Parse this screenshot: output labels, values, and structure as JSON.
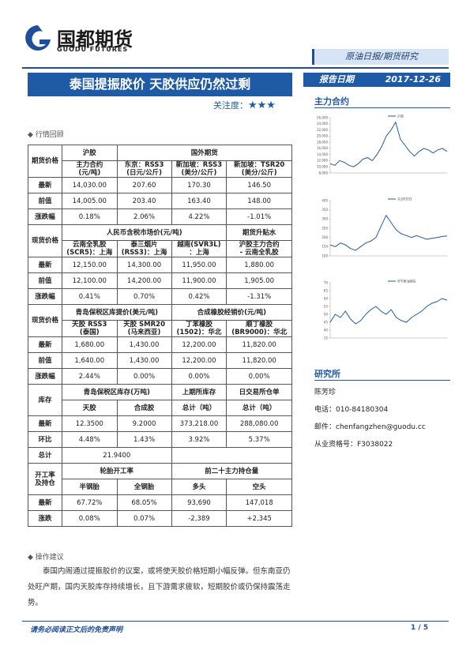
{
  "header": {
    "logo": "国都期货",
    "logo_en": "GUODU FUTURES",
    "tab": "原油日报/期货研究",
    "title": "泰国提振胶价 天胶供应仍然过剩",
    "attention_label": "关注度：",
    "attention_stars": "★★★",
    "date_label": "报告日期",
    "date": "2017-12-26"
  },
  "sections": {
    "main_contract": "主力合约",
    "review": "行情回顾",
    "advice": "操作建议",
    "advice_text": "泰国内阁通过提振胶价的议案，或将使天胶价格短期小幅反弹。但东南亚仍处旺产期，国内天胶库存持续增长，且下游需求疲软，短期胶价或仍保持震荡走势。"
  },
  "table": {
    "rows": [
      [
        "期货价格",
        "沪胶",
        "国外期货"
      ],
      [
        "主力合约\n(元/吨)",
        "东京：RSS3\n(日元/公斤)",
        "新加坡：RSS3\n(美分/公斤)",
        "新加坡：TSR20\n(美分/公斤)"
      ],
      [
        "最新",
        "14,030.00",
        "207.60",
        "170.30",
        "146.50"
      ],
      [
        "前值",
        "14,005.00",
        "203.40",
        "163.40",
        "148.00"
      ],
      [
        "涨跌幅",
        "0.18%",
        "2.06%",
        "4.22%",
        "-1.01%"
      ],
      [
        "现货价格",
        "人民币含税市场价(元/吨)",
        "期货升贴水"
      ],
      [
        "云南全乳胶\n(SCR5)：上海",
        "泰三烟片\n(RSS3)：上海",
        "越南(SVR3L)\n：上海",
        "沪胶主力合约\n- 云南全乳胶"
      ],
      [
        "最新",
        "12,150.00",
        "14,300.00",
        "11,950.00",
        "1,880.00"
      ],
      [
        "前值",
        "12,100.00",
        "14,200.00",
        "11,900.00",
        "1,905.00"
      ],
      [
        "涨跌幅",
        "0.41%",
        "0.70%",
        "0.42%",
        "-1.31%"
      ],
      [
        "现货价格",
        "青岛保税区库提价(美元/吨)",
        "合成橡胶经销价(元/吨)"
      ],
      [
        "天胶 RSS3\n(泰国)",
        "天胶 SMR20\n(马来西亚)",
        "丁苯橡胶\n(1502)：华北",
        "顺丁橡胶\n(BR9000)：华北"
      ],
      [
        "最新",
        "1,680.00",
        "1,430.00",
        "12,200.00",
        "11,820.00"
      ],
      [
        "前值",
        "1,640.00",
        "1,430.00",
        "12,200.00",
        "11,820.00"
      ],
      [
        "涨跌幅",
        "2.44%",
        "0.00%",
        "0.00%",
        "0.00%"
      ],
      [
        "库存",
        "青岛保税区库存(万吨)",
        "上期所库存",
        "日交易所仓单"
      ],
      [
        "天胶",
        "合成胶",
        "总计（吨）",
        "总计（吨）"
      ],
      [
        "最新",
        "12.3500",
        "9.2000",
        "373,218.00",
        "288,080.00"
      ],
      [
        "环比",
        "4.48%",
        "1.43%",
        "3.92%",
        "5.37%"
      ],
      [
        "总计",
        "21.9400"
      ],
      [
        "开工率\n及持仓",
        "轮胎开工率",
        "前二十主力持仓量"
      ],
      [
        "半钢胎",
        "全钢胎",
        "多头",
        "空头"
      ],
      [
        "最新",
        "67.72%",
        "68.05%",
        "93,690",
        "147,018"
      ],
      [
        "涨跌",
        "0.08%",
        "0.07%",
        "-2,389",
        "+2,345"
      ]
    ]
  },
  "charts": [
    {
      "legend": "沪胶",
      "yticks": [
        {
          "value": 8000,
          "label": "8,000"
        },
        {
          "value": 10000,
          "label": "10,000"
        },
        {
          "value": 12000,
          "label": "12,000"
        },
        {
          "value": 14000,
          "label": "14,000"
        },
        {
          "value": 16000,
          "label": "16,000"
        },
        {
          "value": 18000,
          "label": "18,000"
        },
        {
          "value": 20000,
          "label": "20,000"
        },
        {
          "value": 22000,
          "label": "22,000"
        },
        {
          "value": 24000,
          "label": "24,000"
        },
        {
          "value": 26000,
          "label": "26,000"
        }
      ],
      "values": [
        11000,
        10500,
        12000,
        11500,
        10500,
        10000,
        11000,
        12500,
        13000,
        12000,
        14000,
        16500,
        20000,
        22000,
        24500,
        19000,
        17000,
        15000,
        13500,
        15000,
        16000,
        15500,
        14500,
        15500,
        16000,
        15000
      ]
    },
    {
      "legend": "东京RSS3",
      "yticks": [
        100,
        150,
        200,
        250,
        300,
        350,
        400
      ],
      "values": [
        160,
        150,
        170,
        160,
        140,
        130,
        150,
        170,
        180,
        200,
        260,
        320,
        280,
        240,
        220,
        210,
        200,
        210,
        200,
        190,
        195,
        200,
        205,
        208
      ]
    },
    {
      "legend": "WTI原油期货",
      "yticks": [
        35,
        40,
        45,
        50,
        55,
        60,
        65,
        70
      ],
      "values": [
        45,
        50,
        48,
        52,
        47,
        44,
        46,
        50,
        53,
        55,
        52,
        50,
        53,
        48,
        46,
        45,
        48,
        50,
        52,
        55,
        57,
        58,
        60,
        59
      ]
    }
  ],
  "contact": {
    "heading": "研究所",
    "name": "陈芳珍",
    "phone": "电话：010-84180304",
    "email": "邮件：chenfangzhen@guodu.cc",
    "license": "从业资格号：F3038022"
  },
  "footer": {
    "disclaimer": "请务必阅读正文后的免责声明",
    "page": "1 / 5"
  }
}
